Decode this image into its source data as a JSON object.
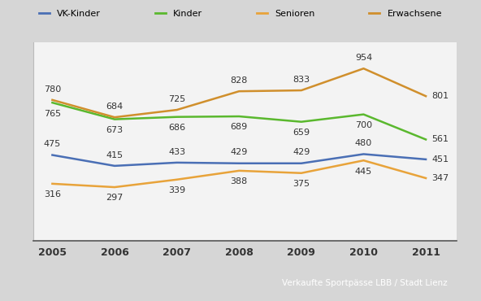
{
  "chart_data": {
    "type": "line",
    "caption": "Verkaufte Sportpässe LBB / Stadt Lienz",
    "x": [
      2005,
      2006,
      2007,
      2008,
      2009,
      2010,
      2011
    ],
    "xlim": [
      2004.7,
      2011.5
    ],
    "xticks": [
      2005,
      2006,
      2007,
      2008,
      2009,
      2010,
      2011
    ],
    "ylim": [
      0,
      1100
    ],
    "tick_labels": "x",
    "legend": "upper center",
    "data_labels": true,
    "grid": false,
    "series": [
      {
        "name": "VK-Kinder",
        "color": "#4a6fb5",
        "values": [
          475,
          415,
          433,
          429,
          429,
          480,
          451
        ]
      },
      {
        "name": "Kinder",
        "color": "#5ab82e",
        "values": [
          765,
          673,
          686,
          689,
          659,
          700,
          561
        ]
      },
      {
        "name": "Senioren",
        "color": "#e8a33a",
        "values": [
          316,
          297,
          339,
          388,
          375,
          445,
          347
        ]
      },
      {
        "name": "Erwachsene",
        "color": "#d08f2c",
        "values": [
          780,
          684,
          725,
          828,
          833,
          954,
          801
        ]
      }
    ]
  }
}
